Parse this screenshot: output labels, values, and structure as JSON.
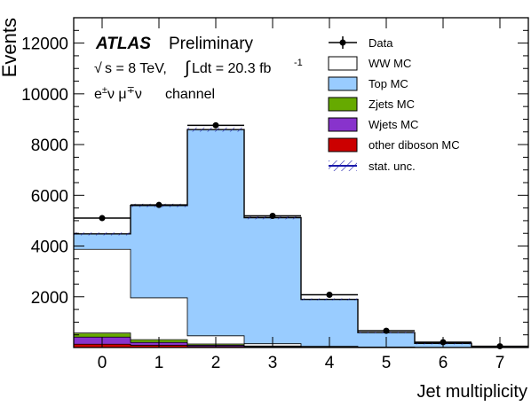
{
  "chart_data": {
    "type": "bar",
    "stacked": true,
    "title": "",
    "xlabel": "Jet multiplicity",
    "ylabel": "Events",
    "categories": [
      "0",
      "1",
      "2",
      "3",
      "4",
      "5",
      "6",
      "7"
    ],
    "xlim": [
      -0.5,
      7.5
    ],
    "ylim": [
      0,
      13000
    ],
    "y_ticks": [
      "2000",
      "4000",
      "6000",
      "8000",
      "10000",
      "12000"
    ],
    "grid": false,
    "legend_position": "top-right",
    "annotations": {
      "atlas": "ATLAS",
      "preliminary": "Preliminary",
      "energy_line_1": "s = 8 TeV, ",
      "energy_line_2": " Ldt = 20.3 fb",
      "energy_exponent": "-1",
      "channel": "channel"
    },
    "series": [
      {
        "name": "other diboson MC",
        "color": "#cc0000",
        "values": [
          130,
          90,
          40,
          20,
          8,
          4,
          1,
          0
        ]
      },
      {
        "name": "Wjets MC",
        "color": "#8833cc",
        "values": [
          280,
          110,
          50,
          20,
          5,
          2,
          1,
          0
        ]
      },
      {
        "name": "Zjets MC",
        "color": "#66aa00",
        "values": [
          160,
          110,
          50,
          20,
          5,
          2,
          1,
          0
        ]
      },
      {
        "name": "WW MC",
        "color": "#ffffff",
        "values": [
          3300,
          1650,
          320,
          90,
          30,
          10,
          3,
          1
        ]
      },
      {
        "name": "Top MC",
        "color": "#99ccff",
        "values": [
          610,
          3640,
          8130,
          4970,
          1850,
          570,
          160,
          40
        ]
      }
    ],
    "data": {
      "name": "Data",
      "values": [
        5100,
        5620,
        8760,
        5190,
        2080,
        660,
        210,
        50
      ]
    },
    "uncertainty": {
      "name": "stat. unc."
    }
  }
}
